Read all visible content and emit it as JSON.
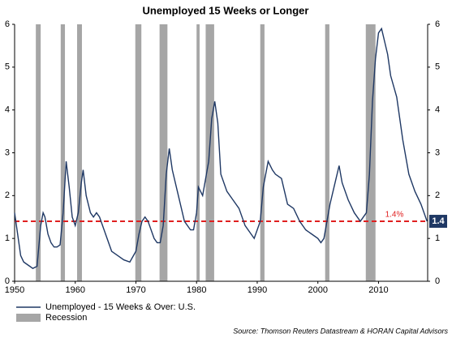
{
  "chart_data": {
    "type": "line",
    "title": "Unemployed 15 Weeks or Longer",
    "source": "Source: Thomson Reuters Datastream & HORAN Capital Advisors",
    "xlim": [
      1950,
      2018.1
    ],
    "xticks": [
      1950,
      1960,
      1970,
      1980,
      1990,
      2000,
      2010
    ],
    "ylim": [
      0,
      6
    ],
    "yticks": [
      0,
      1,
      2,
      3,
      4,
      5,
      6
    ],
    "y2lim": [
      0,
      6
    ],
    "y2ticks": [
      0,
      1,
      2,
      3,
      4,
      5,
      6
    ],
    "series": [
      {
        "name": "Unemployed - 15 Weeks & Over: U.S.",
        "color": "#1f3864",
        "x": [
          1950,
          1950.5,
          1951,
          1951.5,
          1952,
          1952.5,
          1953,
          1953.7,
          1954.3,
          1954.7,
          1955,
          1955.5,
          1956,
          1956.5,
          1957,
          1957.5,
          1958,
          1958.5,
          1959,
          1959.5,
          1960,
          1960.5,
          1961,
          1961.3,
          1961.8,
          1962.5,
          1963,
          1963.5,
          1964,
          1965,
          1966,
          1967,
          1968,
          1969,
          1970,
          1970.5,
          1971,
          1971.5,
          1972,
          1973,
          1973.5,
          1974,
          1974.5,
          1975,
          1975.5,
          1976,
          1977,
          1978,
          1979,
          1979.5,
          1980,
          1980.3,
          1981,
          1982,
          1982.5,
          1983,
          1983.5,
          1984,
          1985,
          1986,
          1987,
          1988,
          1989,
          1989.5,
          1990,
          1990.5,
          1991,
          1991.8,
          1992.5,
          1993,
          1994,
          1995,
          1996,
          1997,
          1998,
          1999,
          2000,
          2000.5,
          2001,
          2001.5,
          2002,
          2003,
          2003.5,
          2004,
          2005,
          2006,
          2007,
          2008,
          2008.5,
          2009,
          2009.5,
          2010,
          2010.5,
          2011,
          2011.5,
          2012,
          2013,
          2014,
          2015,
          2016,
          2017,
          2018
        ],
        "values": [
          1.6,
          1.1,
          0.6,
          0.45,
          0.4,
          0.35,
          0.3,
          0.35,
          1.3,
          1.6,
          1.5,
          1.1,
          0.9,
          0.8,
          0.8,
          0.85,
          1.6,
          2.8,
          2.2,
          1.5,
          1.3,
          1.6,
          2.3,
          2.6,
          2.0,
          1.6,
          1.5,
          1.6,
          1.5,
          1.1,
          0.7,
          0.6,
          0.5,
          0.45,
          0.7,
          1.1,
          1.4,
          1.5,
          1.4,
          1.0,
          0.9,
          0.9,
          1.3,
          2.5,
          3.1,
          2.6,
          2.0,
          1.4,
          1.2,
          1.2,
          1.6,
          2.2,
          2.0,
          2.8,
          3.8,
          4.2,
          3.7,
          2.5,
          2.1,
          1.9,
          1.7,
          1.3,
          1.1,
          1.0,
          1.2,
          1.4,
          2.2,
          2.8,
          2.6,
          2.5,
          2.4,
          1.8,
          1.7,
          1.4,
          1.2,
          1.1,
          1.0,
          0.9,
          1.0,
          1.4,
          1.8,
          2.4,
          2.7,
          2.3,
          1.9,
          1.6,
          1.4,
          1.6,
          2.5,
          4.2,
          5.2,
          5.8,
          5.9,
          5.6,
          5.3,
          4.8,
          4.3,
          3.3,
          2.5,
          2.1,
          1.8,
          1.4
        ]
      }
    ],
    "recessions": {
      "name": "Recession",
      "color": "#a6a6a6",
      "periods": [
        [
          1953.5,
          1954.3
        ],
        [
          1957.6,
          1958.3
        ],
        [
          1960.3,
          1961.1
        ],
        [
          1969.9,
          1970.9
        ],
        [
          1973.9,
          1975.2
        ],
        [
          1980.0,
          1980.5
        ],
        [
          1981.5,
          1982.9
        ],
        [
          1990.5,
          1991.2
        ],
        [
          2001.2,
          2001.9
        ],
        [
          2007.9,
          2009.5
        ]
      ]
    },
    "reference_line": {
      "value": 1.4,
      "label": "1.4%",
      "color": "#e02020"
    },
    "end_label": {
      "value": 1.4,
      "label": "1.4",
      "color": "#1f3864"
    }
  }
}
